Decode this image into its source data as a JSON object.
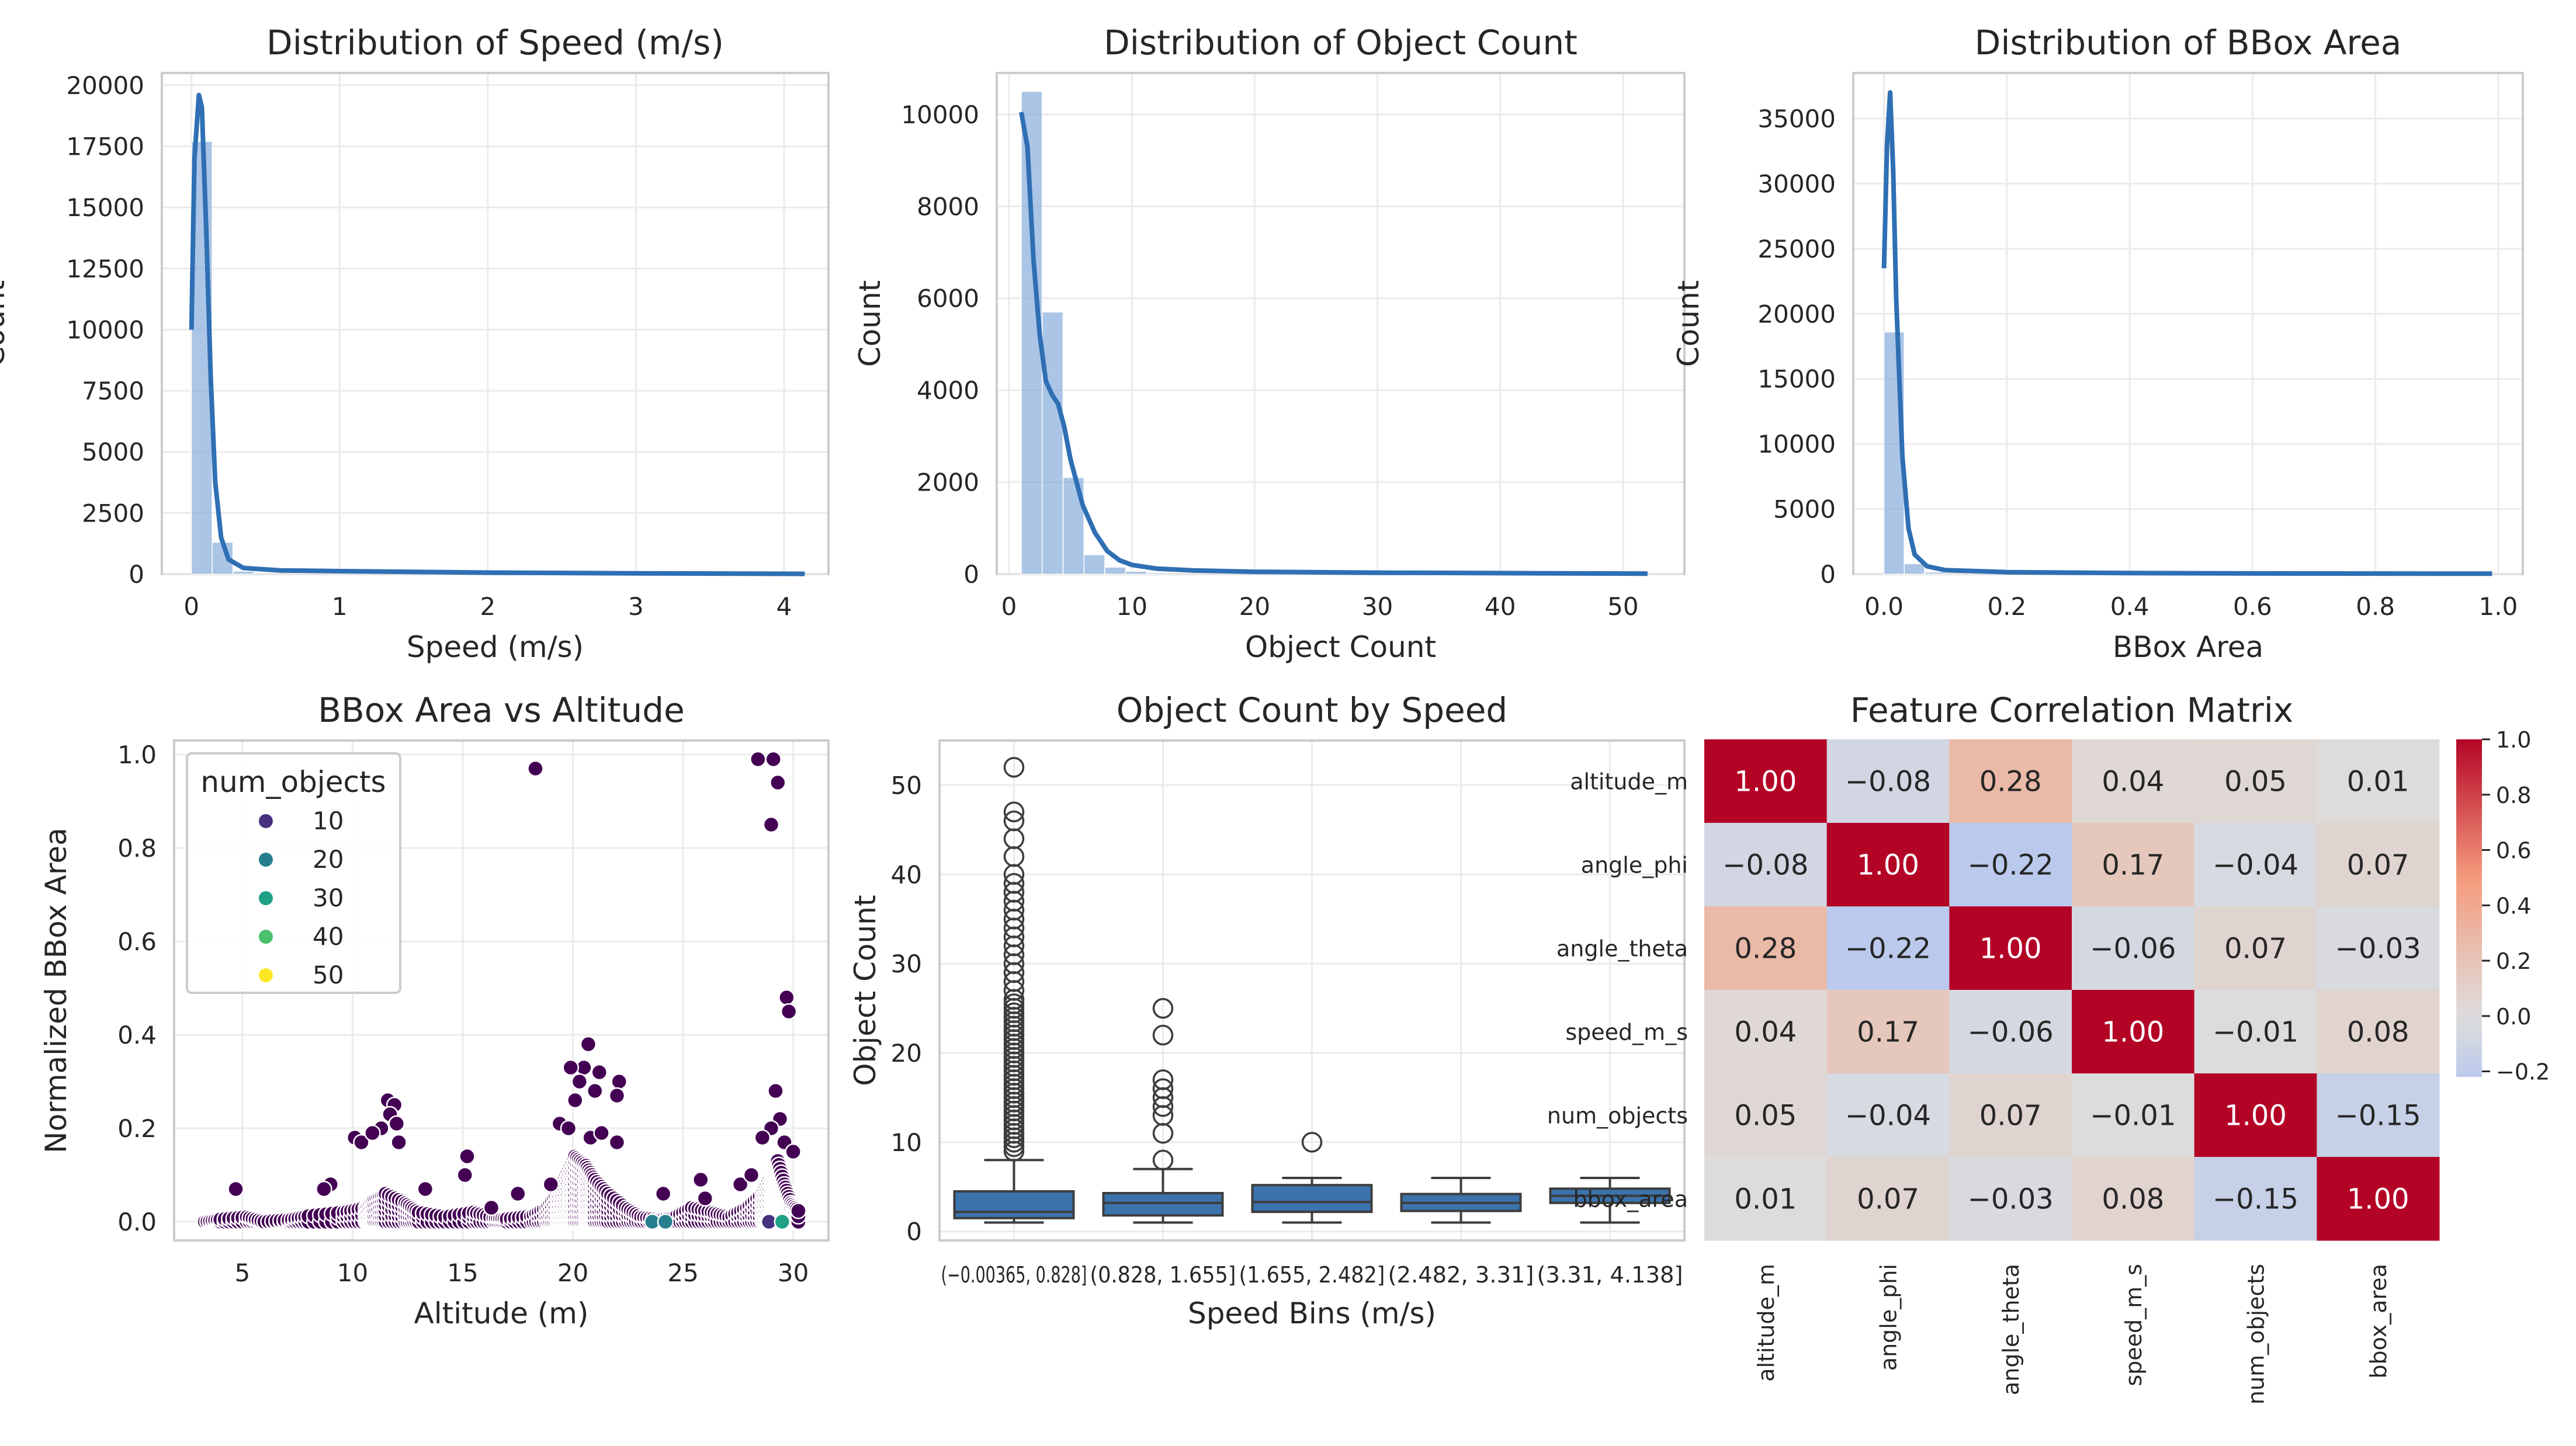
{
  "chart_data": [
    {
      "id": "speed",
      "type": "histogram",
      "title": "Distribution of Speed (m/s)",
      "xlabel": "Speed (m/s)",
      "ylabel": "Count",
      "xlim": [
        -0.2,
        4.3
      ],
      "ylim": [
        0,
        20500
      ],
      "xticks": [
        0,
        1,
        2,
        3,
        4
      ],
      "yticks": [
        0,
        2500,
        5000,
        7500,
        10000,
        12500,
        15000,
        17500,
        20000
      ],
      "ytick_labels": [
        "0",
        "2500",
        "5000",
        "7500",
        "10000",
        "12500",
        "15000",
        "17500",
        "20000"
      ],
      "bins": [
        {
          "x0": 0.0,
          "x1": 0.14,
          "count": 17700
        },
        {
          "x0": 0.14,
          "x1": 0.28,
          "count": 1300
        },
        {
          "x0": 0.28,
          "x1": 0.42,
          "count": 120
        }
      ],
      "kde": [
        [
          0.0,
          10000
        ],
        [
          0.02,
          17000
        ],
        [
          0.05,
          19600
        ],
        [
          0.07,
          19100
        ],
        [
          0.1,
          14000
        ],
        [
          0.13,
          8000
        ],
        [
          0.16,
          3800
        ],
        [
          0.2,
          1500
        ],
        [
          0.25,
          600
        ],
        [
          0.35,
          250
        ],
        [
          0.6,
          150
        ],
        [
          1.0,
          120
        ],
        [
          1.5,
          90
        ],
        [
          2.0,
          60
        ],
        [
          3.0,
          30
        ],
        [
          4.14,
          10
        ]
      ]
    },
    {
      "id": "objects",
      "type": "histogram",
      "title": "Distribution of Object Count",
      "xlabel": "Object Count",
      "ylabel": "Count",
      "xlim": [
        -1,
        55
      ],
      "ylim": [
        0,
        10900
      ],
      "xticks": [
        0,
        10,
        20,
        30,
        40,
        50
      ],
      "yticks": [
        0,
        2000,
        4000,
        6000,
        8000,
        10000
      ],
      "ytick_labels": [
        "0",
        "2000",
        "4000",
        "6000",
        "8000",
        "10000"
      ],
      "bins": [
        {
          "x0": 1.0,
          "x1": 2.7,
          "count": 10500
        },
        {
          "x0": 2.7,
          "x1": 4.4,
          "count": 5700
        },
        {
          "x0": 4.4,
          "x1": 6.1,
          "count": 2100
        },
        {
          "x0": 6.1,
          "x1": 7.8,
          "count": 420
        },
        {
          "x0": 7.8,
          "x1": 9.5,
          "count": 150
        },
        {
          "x0": 9.5,
          "x1": 11.2,
          "count": 60
        },
        {
          "x0": 11.2,
          "x1": 12.9,
          "count": 30
        }
      ],
      "kde": [
        [
          1.0,
          10050
        ],
        [
          1.5,
          9300
        ],
        [
          2.0,
          6800
        ],
        [
          2.5,
          5200
        ],
        [
          3.0,
          4200
        ],
        [
          3.5,
          3900
        ],
        [
          4.0,
          3700
        ],
        [
          4.5,
          3200
        ],
        [
          5.0,
          2500
        ],
        [
          6.0,
          1500
        ],
        [
          7.0,
          900
        ],
        [
          8.0,
          500
        ],
        [
          9.0,
          300
        ],
        [
          10.0,
          200
        ],
        [
          12.0,
          120
        ],
        [
          15.0,
          80
        ],
        [
          20.0,
          50
        ],
        [
          30.0,
          30
        ],
        [
          40.0,
          20
        ],
        [
          52.0,
          10
        ]
      ]
    },
    {
      "id": "bbox",
      "type": "histogram",
      "title": "Distribution of BBox Area",
      "xlabel": "BBox Area",
      "ylabel": "Count",
      "xlim": [
        -0.05,
        1.04
      ],
      "ylim": [
        0,
        38500
      ],
      "xticks": [
        0.0,
        0.2,
        0.4,
        0.6,
        0.8,
        1.0
      ],
      "xtick_labels": [
        "0.0",
        "0.2",
        "0.4",
        "0.6",
        "0.8",
        "1.0"
      ],
      "yticks": [
        0,
        5000,
        10000,
        15000,
        20000,
        25000,
        30000,
        35000
      ],
      "ytick_labels": [
        "0",
        "5000",
        "10000",
        "15000",
        "20000",
        "25000",
        "30000",
        "35000"
      ],
      "bins": [
        {
          "x0": 0.0,
          "x1": 0.033,
          "count": 18600
        },
        {
          "x0": 0.033,
          "x1": 0.066,
          "count": 800
        },
        {
          "x0": 0.066,
          "x1": 0.099,
          "count": 150
        }
      ],
      "kde": [
        [
          0.0,
          23500
        ],
        [
          0.005,
          33000
        ],
        [
          0.01,
          37000
        ],
        [
          0.015,
          31000
        ],
        [
          0.02,
          21000
        ],
        [
          0.03,
          9000
        ],
        [
          0.04,
          3500
        ],
        [
          0.05,
          1500
        ],
        [
          0.07,
          600
        ],
        [
          0.1,
          300
        ],
        [
          0.2,
          150
        ],
        [
          0.4,
          80
        ],
        [
          0.6,
          50
        ],
        [
          0.8,
          40
        ],
        [
          0.99,
          30
        ]
      ]
    },
    {
      "id": "scatter",
      "type": "scatter",
      "title": "BBox Area vs Altitude",
      "xlabel": "Altitude (m)",
      "ylabel": "Normalized BBox Area",
      "xlim": [
        1.9,
        31.6
      ],
      "ylim": [
        -0.04,
        1.03
      ],
      "xticks": [
        5,
        10,
        15,
        20,
        25,
        30
      ],
      "yticks": [
        0.0,
        0.2,
        0.4,
        0.6,
        0.8,
        1.0
      ],
      "ytick_labels": [
        "0.0",
        "0.2",
        "0.4",
        "0.6",
        "0.8",
        "1.0"
      ],
      "legend_title": "num_objects",
      "legend": [
        {
          "label": "10",
          "color": "#46327e"
        },
        {
          "label": "20",
          "color": "#277f8e"
        },
        {
          "label": "30",
          "color": "#1fa187"
        },
        {
          "label": "40",
          "color": "#4ac16d"
        },
        {
          "label": "50",
          "color": "#fde725"
        }
      ],
      "base_color": "#440154",
      "points": [
        [
          18.3,
          0.97
        ],
        [
          28.4,
          0.99
        ],
        [
          29.1,
          0.99
        ],
        [
          29.3,
          0.94
        ],
        [
          29.0,
          0.85
        ],
        [
          29.7,
          0.48
        ],
        [
          29.8,
          0.45
        ],
        [
          20.7,
          0.38
        ],
        [
          20.5,
          0.33
        ],
        [
          21.2,
          0.32
        ],
        [
          19.9,
          0.33
        ],
        [
          20.3,
          0.3
        ],
        [
          22.1,
          0.3
        ],
        [
          21.0,
          0.28
        ],
        [
          20.1,
          0.26
        ],
        [
          22.0,
          0.27
        ],
        [
          11.6,
          0.26
        ],
        [
          11.9,
          0.25
        ],
        [
          11.7,
          0.23
        ],
        [
          12.0,
          0.21
        ],
        [
          11.3,
          0.2
        ],
        [
          10.1,
          0.18
        ],
        [
          10.4,
          0.17
        ],
        [
          10.9,
          0.19
        ],
        [
          12.1,
          0.17
        ],
        [
          29.2,
          0.28
        ],
        [
          29.4,
          0.22
        ],
        [
          29.0,
          0.2
        ],
        [
          28.6,
          0.18
        ],
        [
          29.6,
          0.17
        ],
        [
          30.0,
          0.15
        ],
        [
          19.4,
          0.21
        ],
        [
          19.8,
          0.2
        ],
        [
          20.8,
          0.18
        ],
        [
          22.0,
          0.17
        ],
        [
          21.3,
          0.19
        ],
        [
          15.2,
          0.14
        ],
        [
          15.1,
          0.1
        ],
        [
          9.0,
          0.08
        ],
        [
          8.7,
          0.07
        ],
        [
          4.7,
          0.07
        ],
        [
          13.3,
          0.07
        ],
        [
          24.1,
          0.06
        ],
        [
          25.8,
          0.09
        ],
        [
          27.6,
          0.08
        ],
        [
          28.1,
          0.1
        ],
        [
          26.0,
          0.05
        ],
        [
          19.0,
          0.08
        ],
        [
          17.5,
          0.06
        ],
        [
          16.3,
          0.03
        ]
      ],
      "band_points": [
        [
          3.3,
          0.0
        ],
        [
          4.0,
          0.005
        ],
        [
          5.2,
          0.01
        ],
        [
          6.0,
          0.0
        ],
        [
          7.1,
          0.004
        ],
        [
          8.0,
          0.012
        ],
        [
          9.6,
          0.02
        ],
        [
          10.6,
          0.03
        ],
        [
          11.0,
          0.05
        ],
        [
          11.5,
          0.06
        ],
        [
          12.4,
          0.04
        ],
        [
          13.0,
          0.02
        ],
        [
          14.2,
          0.01
        ],
        [
          15.5,
          0.02
        ],
        [
          16.4,
          0.008
        ],
        [
          17.0,
          0.006
        ],
        [
          18.1,
          0.012
        ],
        [
          18.8,
          0.03
        ],
        [
          19.3,
          0.06
        ],
        [
          19.7,
          0.1
        ],
        [
          20.1,
          0.14
        ],
        [
          20.6,
          0.12
        ],
        [
          21.0,
          0.09
        ],
        [
          21.6,
          0.06
        ],
        [
          22.4,
          0.03
        ],
        [
          23.1,
          0.01
        ],
        [
          23.9,
          0.005
        ],
        [
          24.6,
          0.01
        ],
        [
          25.4,
          0.03
        ],
        [
          26.3,
          0.02
        ],
        [
          27.1,
          0.01
        ],
        [
          27.9,
          0.03
        ],
        [
          28.6,
          0.06
        ],
        [
          29.0,
          0.1
        ],
        [
          29.3,
          0.13
        ],
        [
          29.6,
          0.08
        ],
        [
          29.9,
          0.04
        ],
        [
          30.3,
          0.02
        ]
      ],
      "colored_points": [
        [
          23.6,
          0.0,
          "#277f8e"
        ],
        [
          24.2,
          0.0,
          "#277f8e"
        ],
        [
          28.9,
          0.0,
          "#46327e"
        ],
        [
          29.5,
          0.0,
          "#1fa187"
        ]
      ]
    },
    {
      "id": "boxplot",
      "type": "box",
      "title": "Object Count by Speed",
      "xlabel": "Speed Bins (m/s)",
      "ylabel": "Object Count",
      "ylim": [
        -1,
        55
      ],
      "yticks": [
        0,
        10,
        20,
        30,
        40,
        50
      ],
      "categories": [
        "(−0.00365, 0.828]",
        "(0.828, 1.655]",
        "(1.655, 2.482]",
        "(2.482, 3.31]",
        "(3.31, 4.138]"
      ],
      "boxes": [
        {
          "whislo": 1,
          "q1": 1.5,
          "med": 2.2,
          "q3": 4.5,
          "whishi": 8,
          "fliers": [
            9,
            9.5,
            10,
            10.5,
            11,
            11.5,
            12,
            12.5,
            13,
            13.5,
            14,
            14.5,
            15,
            15.5,
            16,
            16.5,
            17,
            17.5,
            18,
            18.5,
            19,
            19.5,
            20,
            20.5,
            21,
            21.5,
            22,
            22.5,
            23,
            23.5,
            24,
            24.5,
            25,
            25.5,
            26,
            27,
            28,
            29,
            30,
            31,
            32,
            33,
            34,
            35,
            36,
            37,
            38,
            39,
            40,
            42,
            44,
            46,
            47,
            52
          ]
        },
        {
          "whislo": 1,
          "q1": 1.8,
          "med": 3.2,
          "q3": 4.3,
          "whishi": 7,
          "fliers": [
            8,
            11,
            13,
            14,
            15,
            16,
            17,
            22,
            25
          ]
        },
        {
          "whislo": 1,
          "q1": 2.2,
          "med": 3.3,
          "q3": 5.2,
          "whishi": 6,
          "fliers": [
            10
          ]
        },
        {
          "whislo": 1,
          "q1": 2.3,
          "med": 3.2,
          "q3": 4.2,
          "whishi": 6,
          "fliers": []
        },
        {
          "whislo": 1,
          "q1": 3.2,
          "med": 4.0,
          "q3": 4.8,
          "whishi": 6,
          "fliers": []
        }
      ]
    },
    {
      "id": "heatmap",
      "type": "heatmap",
      "title": "Feature Correlation Matrix",
      "labels": [
        "altitude_m",
        "angle_phi",
        "angle_theta",
        "speed_m_s",
        "num_objects",
        "bbox_area"
      ],
      "col_labels": [
        "altitude_m",
        "angle_phi",
        "angle_theta",
        "speed_m_s",
        "num_objects",
        "bbox_area"
      ],
      "matrix": [
        [
          1.0,
          -0.08,
          0.28,
          0.04,
          0.05,
          0.01
        ],
        [
          -0.08,
          1.0,
          -0.22,
          0.17,
          -0.04,
          0.07
        ],
        [
          0.28,
          -0.22,
          1.0,
          -0.06,
          0.07,
          -0.03
        ],
        [
          0.04,
          0.17,
          -0.06,
          1.0,
          -0.01,
          0.08
        ],
        [
          0.05,
          -0.04,
          0.07,
          -0.01,
          1.0,
          -0.15
        ],
        [
          0.01,
          0.07,
          -0.03,
          0.08,
          -0.15,
          1.0
        ]
      ],
      "display": [
        [
          "1.00",
          "−0.08",
          "0.28",
          "0.04",
          "0.05",
          "0.01"
        ],
        [
          "−0.08",
          "1.00",
          "−0.22",
          "0.17",
          "−0.04",
          "0.07"
        ],
        [
          "0.28",
          "−0.22",
          "1.00",
          "−0.06",
          "0.07",
          "−0.03"
        ],
        [
          "0.04",
          "0.17",
          "−0.06",
          "1.00",
          "−0.01",
          "0.08"
        ],
        [
          "0.05",
          "−0.04",
          "0.07",
          "−0.01",
          "1.00",
          "−0.15"
        ],
        [
          "0.01",
          "0.07",
          "−0.03",
          "0.08",
          "−0.15",
          "1.00"
        ]
      ],
      "vmin": -0.22,
      "vmax": 1.0,
      "colorbar_ticks": [
        1.0,
        0.8,
        0.6,
        0.4,
        0.2,
        0.0,
        -0.2
      ],
      "colorbar_tick_labels": [
        "1.0",
        "0.8",
        "0.6",
        "0.4",
        "0.2",
        "0.0",
        "−0.2"
      ]
    }
  ]
}
